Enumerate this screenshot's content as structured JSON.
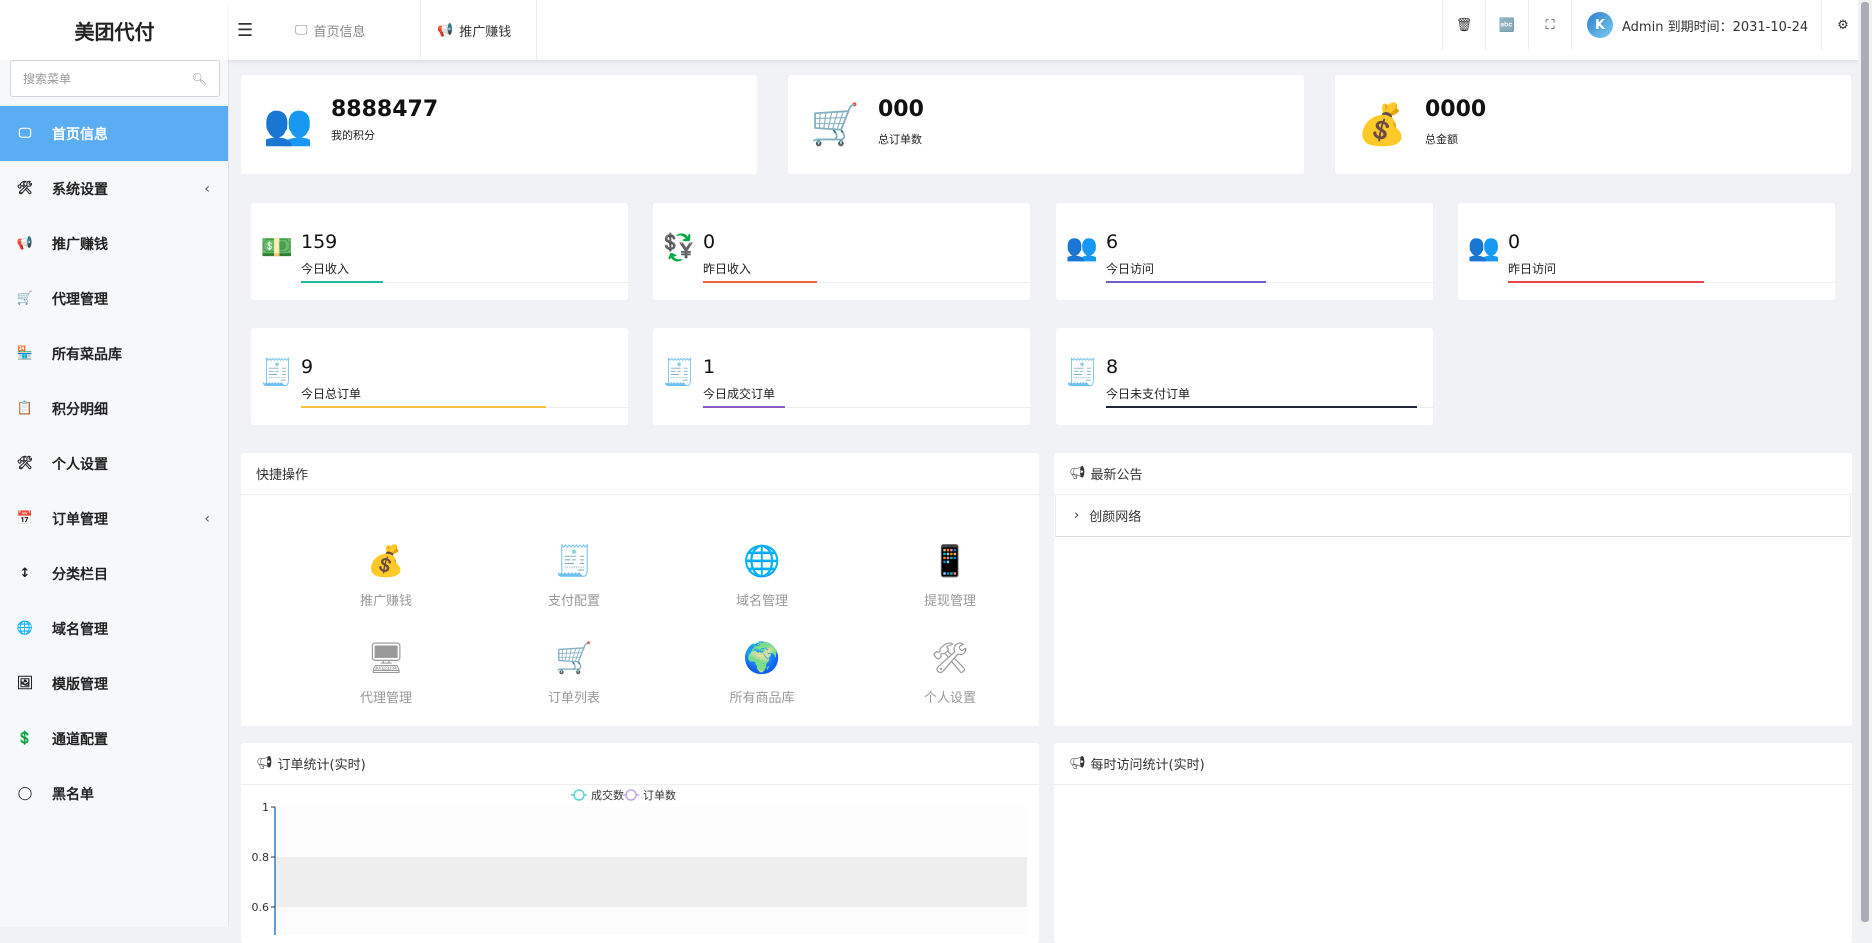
{
  "app": {
    "title": "美团代付"
  },
  "sidebar": {
    "search_placeholder": "搜索菜单",
    "items": [
      {
        "label": "首页信息",
        "icon": "home-icon",
        "active": true
      },
      {
        "label": "系统设置",
        "icon": "settings-window-icon",
        "expandable": true
      },
      {
        "label": "推广赚钱",
        "icon": "megaphone-icon"
      },
      {
        "label": "代理管理",
        "icon": "agent-icon"
      },
      {
        "label": "所有菜品库",
        "icon": "store-icon"
      },
      {
        "label": "积分明细",
        "icon": "points-icon"
      },
      {
        "label": "个人设置",
        "icon": "settings-window-icon"
      },
      {
        "label": "订单管理",
        "icon": "order-icon",
        "expandable": true
      },
      {
        "label": "分类栏目",
        "icon": "sort-icon"
      },
      {
        "label": "域名管理",
        "icon": "domain-icon"
      },
      {
        "label": "模版管理",
        "icon": "template-icon"
      },
      {
        "label": "通道配置",
        "icon": "channel-icon"
      },
      {
        "label": "黑名单",
        "icon": "blacklist-icon"
      }
    ]
  },
  "header": {
    "tabs": [
      {
        "label": "首页信息"
      },
      {
        "label": "推广赚钱"
      }
    ],
    "user": "Admin 到期时间：2031-10-24"
  },
  "summary": [
    {
      "value": "8888477",
      "label": "我的积分"
    },
    {
      "value": "000",
      "label": "总订单数"
    },
    {
      "value": "0000",
      "label": "总金额"
    }
  ],
  "stats": [
    {
      "value": "159",
      "label": "今日收入",
      "color": "#1abc9c",
      "progress": 0.25
    },
    {
      "value": "0",
      "label": "昨日收入",
      "color": "#f0643c",
      "progress": 0.35
    },
    {
      "value": "6",
      "label": "今日访问",
      "color": "#6d5bd0",
      "progress": 0.49
    },
    {
      "value": "0",
      "label": "昨日访问",
      "color": "#e84545",
      "progress": 0.6
    },
    {
      "value": "9",
      "label": "今日总订单",
      "color": "#f5c242",
      "progress": 0.75
    },
    {
      "value": "1",
      "label": "今日成交订单",
      "color": "#8a5cc9",
      "progress": 0.25
    },
    {
      "value": "8",
      "label": "今日未支付订单",
      "color": "#1d2433",
      "progress": 0.95
    }
  ],
  "quick": {
    "title": "快捷操作",
    "items": [
      "推广赚钱",
      "支付配置",
      "域名管理",
      "提现管理",
      "代理管理",
      "订单列表",
      "所有商品库",
      "个人设置"
    ]
  },
  "notice": {
    "title": "最新公告",
    "items": [
      "创颜网络"
    ]
  },
  "order_chart": {
    "title": "订单统计(实时)"
  },
  "visit_chart": {
    "title": "每时访问统计(实时)"
  },
  "chart_data": {
    "type": "line",
    "series": [
      {
        "name": "成交数",
        "values": [],
        "color": "#5fd3d3"
      },
      {
        "name": "订单数",
        "values": [],
        "color": "#c2a8e8"
      }
    ],
    "yticks": [
      "1",
      "0.8",
      "0.6"
    ],
    "ylim": [
      0,
      1
    ],
    "legend": "top"
  }
}
